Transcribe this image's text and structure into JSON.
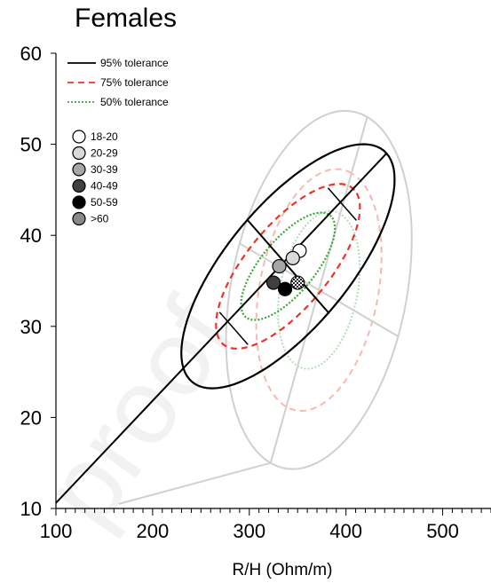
{
  "chart_data": {
    "type": "scatter",
    "title": "Females",
    "xlabel": "R/H (Ohm/m)",
    "ylabel": "",
    "xlim": [
      100,
      550
    ],
    "ylim": [
      10,
      60
    ],
    "xticks": [
      "100",
      "200",
      "300",
      "400",
      "500"
    ],
    "yticks": [
      "10",
      "20",
      "30",
      "40",
      "50",
      "60"
    ],
    "watermark": "proof",
    "ellipse_legend": [
      {
        "label": "95% tolerance",
        "color": "#000000",
        "style": "solid"
      },
      {
        "label": "75% tolerance",
        "color": "#e8342b",
        "style": "dashed"
      },
      {
        "label": "50% tolerance",
        "color": "#3aa63a",
        "style": "dotted"
      }
    ],
    "series": [
      {
        "name": "18-20",
        "x": 352,
        "y": 38.3,
        "fill": "#ffffff"
      },
      {
        "name": "20-29",
        "x": 345,
        "y": 37.5,
        "fill": "#d9d9d9"
      },
      {
        "name": "30-39",
        "x": 331,
        "y": 36.6,
        "fill": "#a6a6a6"
      },
      {
        "name": "40-49",
        "x": 325,
        "y": 34.8,
        "fill": "#404040"
      },
      {
        "name": "50-59",
        "x": 337,
        "y": 34.1,
        "fill": "#000000"
      },
      {
        "name": ">60",
        "x": 350,
        "y": 34.8,
        "fill": "checkered"
      }
    ],
    "ellipses": {
      "center": [
        340,
        36.6
      ],
      "semi_major_95": [
        102,
        12.4
      ],
      "semi_minor_95": [
        -42,
        5.1
      ],
      "scales": [
        1.0,
        0.675,
        0.44
      ],
      "reference_center": [
        372,
        34.0
      ],
      "reference_semi_major_95": [
        50,
        19.0
      ],
      "reference_semi_minor_95": [
        -82,
        5.1
      ]
    },
    "grid": false,
    "legend_position": "top-left"
  }
}
